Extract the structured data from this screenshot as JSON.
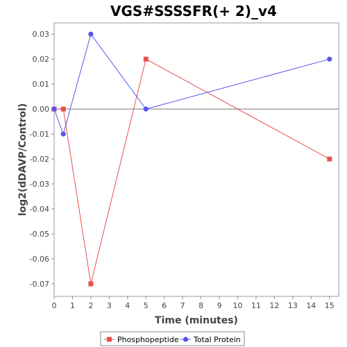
{
  "chart_data": {
    "type": "line",
    "title": "VGS#SSSSFR(+ 2)_v4",
    "xlabel": "Time (minutes)",
    "ylabel": "log2(dDAVP/Control)",
    "xlim": [
      0,
      15.5
    ],
    "ylim": [
      -0.075,
      0.0345
    ],
    "x_ticks": [
      0,
      1,
      2,
      3,
      4,
      5,
      6,
      7,
      8,
      9,
      10,
      11,
      12,
      13,
      14,
      15
    ],
    "y_ticks": [
      -0.07,
      -0.06,
      -0.05,
      -0.04,
      -0.03,
      -0.02,
      -0.01,
      0.0,
      0.01,
      0.02,
      0.03
    ],
    "y_tick_labels": [
      "-0.07",
      "-0.06",
      "-0.05",
      "-0.04",
      "-0.03",
      "-0.02",
      "-0.01",
      "0.00",
      "0.01",
      "0.02",
      "0.03"
    ],
    "zero_line": true,
    "grid": false,
    "legend_position": "bottom",
    "series": [
      {
        "name": "Phosphopeptide",
        "color": "#e8504f",
        "marker": "square",
        "x": [
          0,
          0.5,
          2,
          5,
          15
        ],
        "y": [
          0.0,
          0.0,
          -0.07,
          0.02,
          -0.02
        ]
      },
      {
        "name": "Total Protein",
        "color": "#5555ee",
        "marker": "circle",
        "x": [
          0,
          0.5,
          2,
          5,
          15
        ],
        "y": [
          0.0,
          -0.01,
          0.03,
          0.0,
          0.02
        ]
      }
    ]
  }
}
